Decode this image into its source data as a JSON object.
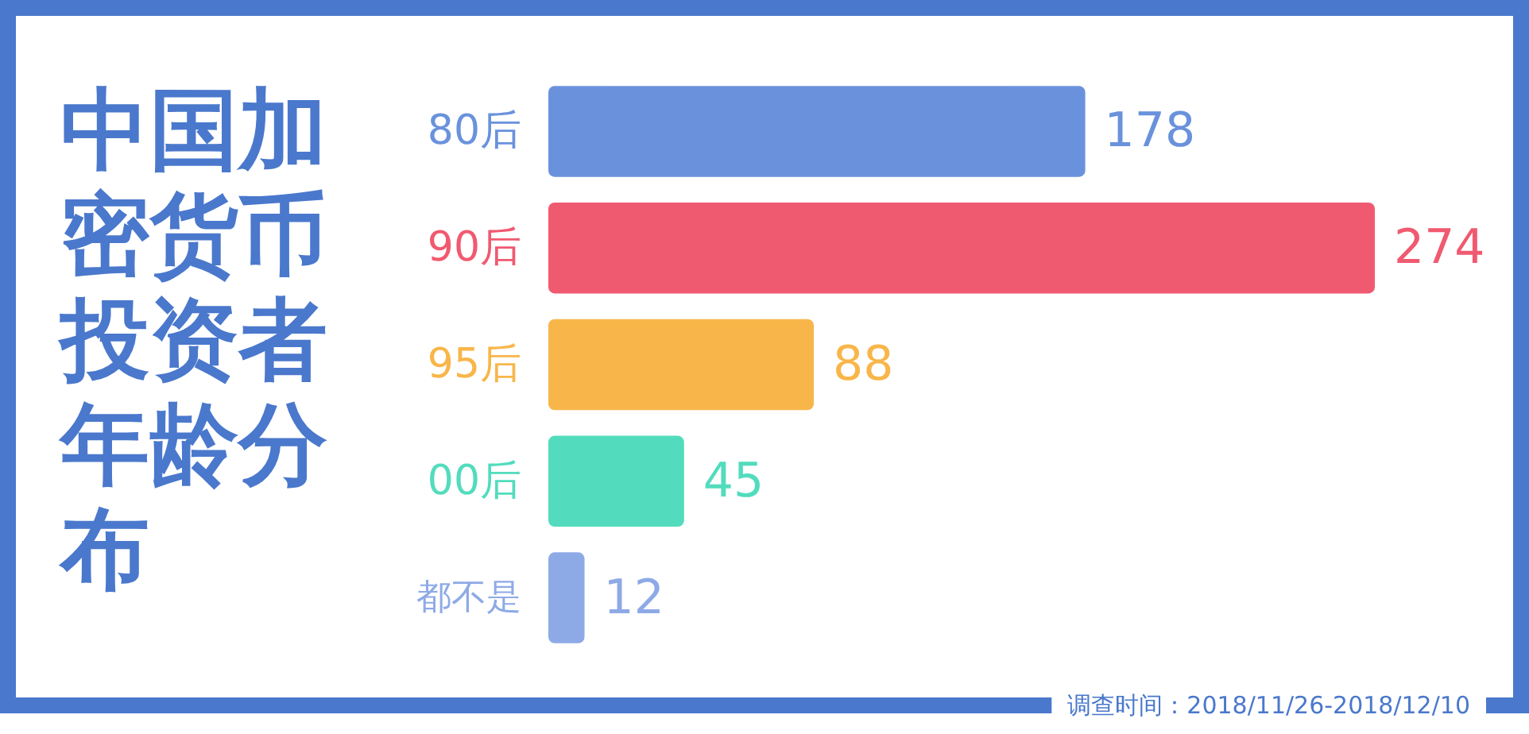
{
  "chart_data": {
    "type": "bar",
    "orientation": "horizontal",
    "title": "中国加密货币投资者年龄分布",
    "categories": [
      "80后",
      "90后",
      "95后",
      "00后",
      "都不是"
    ],
    "values": [
      178,
      274,
      88,
      45,
      12
    ],
    "colors": [
      "#6a92dc",
      "#f05a70",
      "#f8b64a",
      "#52dcbd",
      "#8eaae6"
    ],
    "data_labels": true,
    "annotations": [
      "调查时间：2018/11/26-2018/12/10"
    ]
  }
}
